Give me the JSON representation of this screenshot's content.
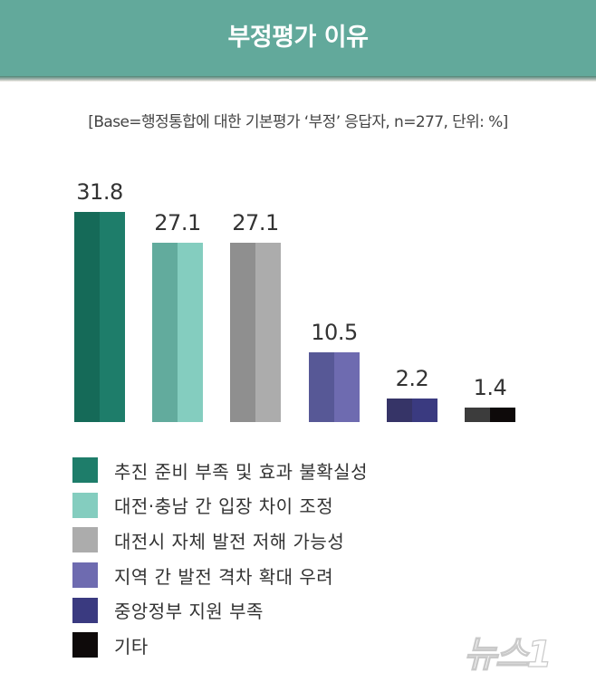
{
  "header": {
    "title": "부정평가 이유"
  },
  "subtitle": "[Base=행정통합에 대한 기본평가 ‘부정’ 응답자, n=277, 단위: %]",
  "watermark": "뉴스1",
  "chart_data": {
    "type": "bar",
    "title": "부정평가 이유",
    "subtitle": "[Base=행정통합에 대한 기본평가 ‘부정’ 응답자, n=277, 단위: %]",
    "categories": [
      "추진 준비 부족 및 효과 불확실성",
      "대전·충남 간 입장 차이 조정",
      "대전시 자체 발전 저해 가능성",
      "지역 간 발전 격차 확대 우려",
      "중앙정부 지원 부족",
      "기타"
    ],
    "values": [
      31.8,
      27.1,
      27.1,
      10.5,
      2.2,
      1.4
    ],
    "value_labels": [
      "31.8",
      "27.1",
      "27.1",
      "10.5",
      "2.2",
      "1.4"
    ],
    "colors": [
      "#1e7d6a",
      "#84cdbf",
      "#acacac",
      "#6e6bb0",
      "#3a3a80",
      "#0e0a0a"
    ],
    "shade_colors": [
      "#156a58",
      "#62ab9d",
      "#8f8f8f",
      "#575896",
      "#363467",
      "#3c3c3c"
    ],
    "xlabel": "",
    "ylabel": "단위: %",
    "ylim": [
      0,
      31.8
    ],
    "grid": false,
    "legend_position": "bottom-left"
  }
}
